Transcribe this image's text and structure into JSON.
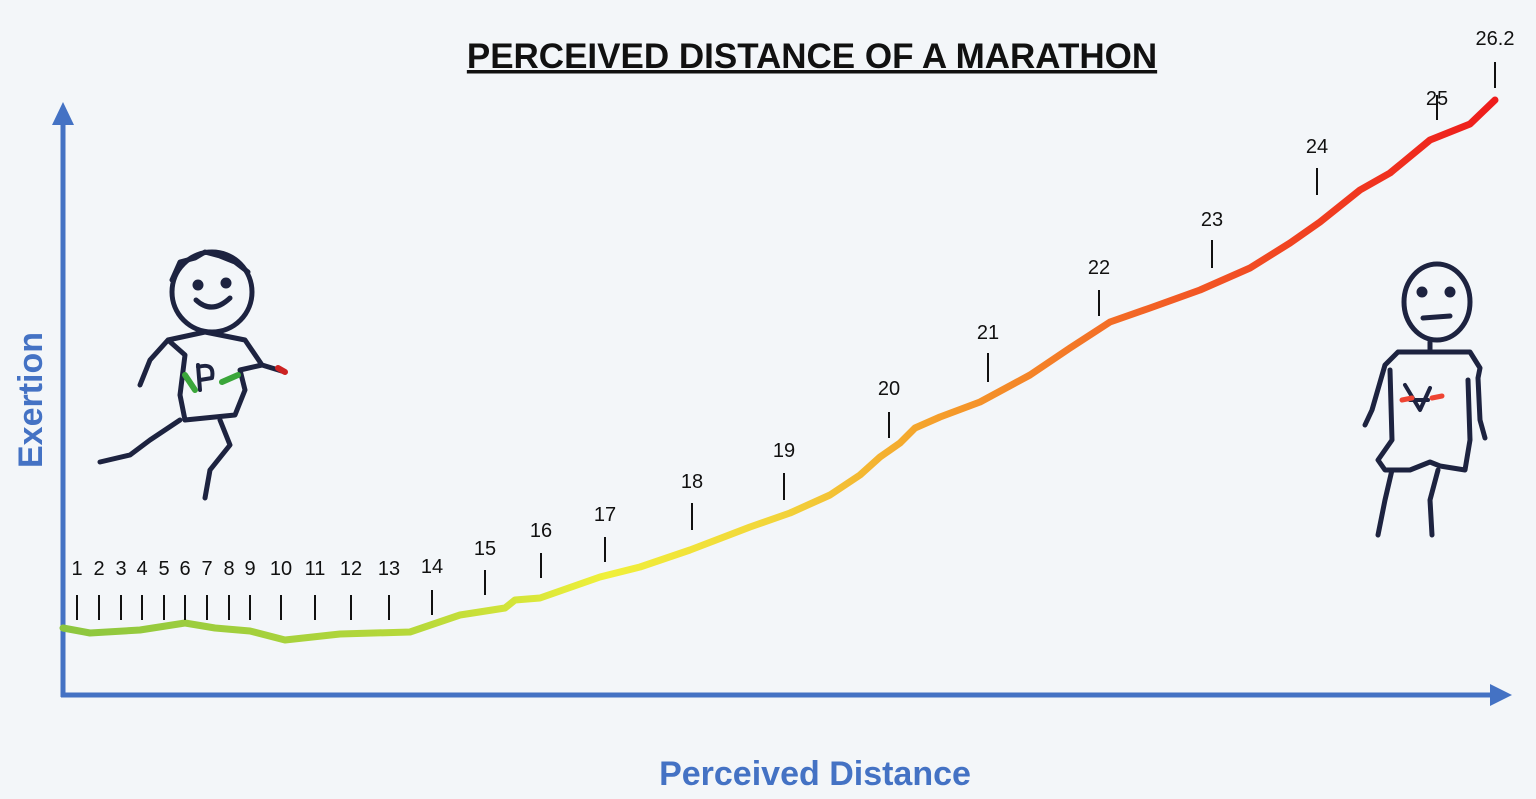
{
  "title": "PERCEIVED DISTANCE OF A MARATHON",
  "x_axis_label": "Perceived Distance",
  "y_axis_label": "Exertion",
  "markers": [
    "1",
    "2",
    "3",
    "4",
    "5",
    "6",
    "7",
    "8",
    "9",
    "10",
    "11",
    "12",
    "13",
    "14",
    "15",
    "16",
    "17",
    "18",
    "19",
    "20",
    "21",
    "22",
    "23",
    "24",
    "25",
    "26.2"
  ]
}
